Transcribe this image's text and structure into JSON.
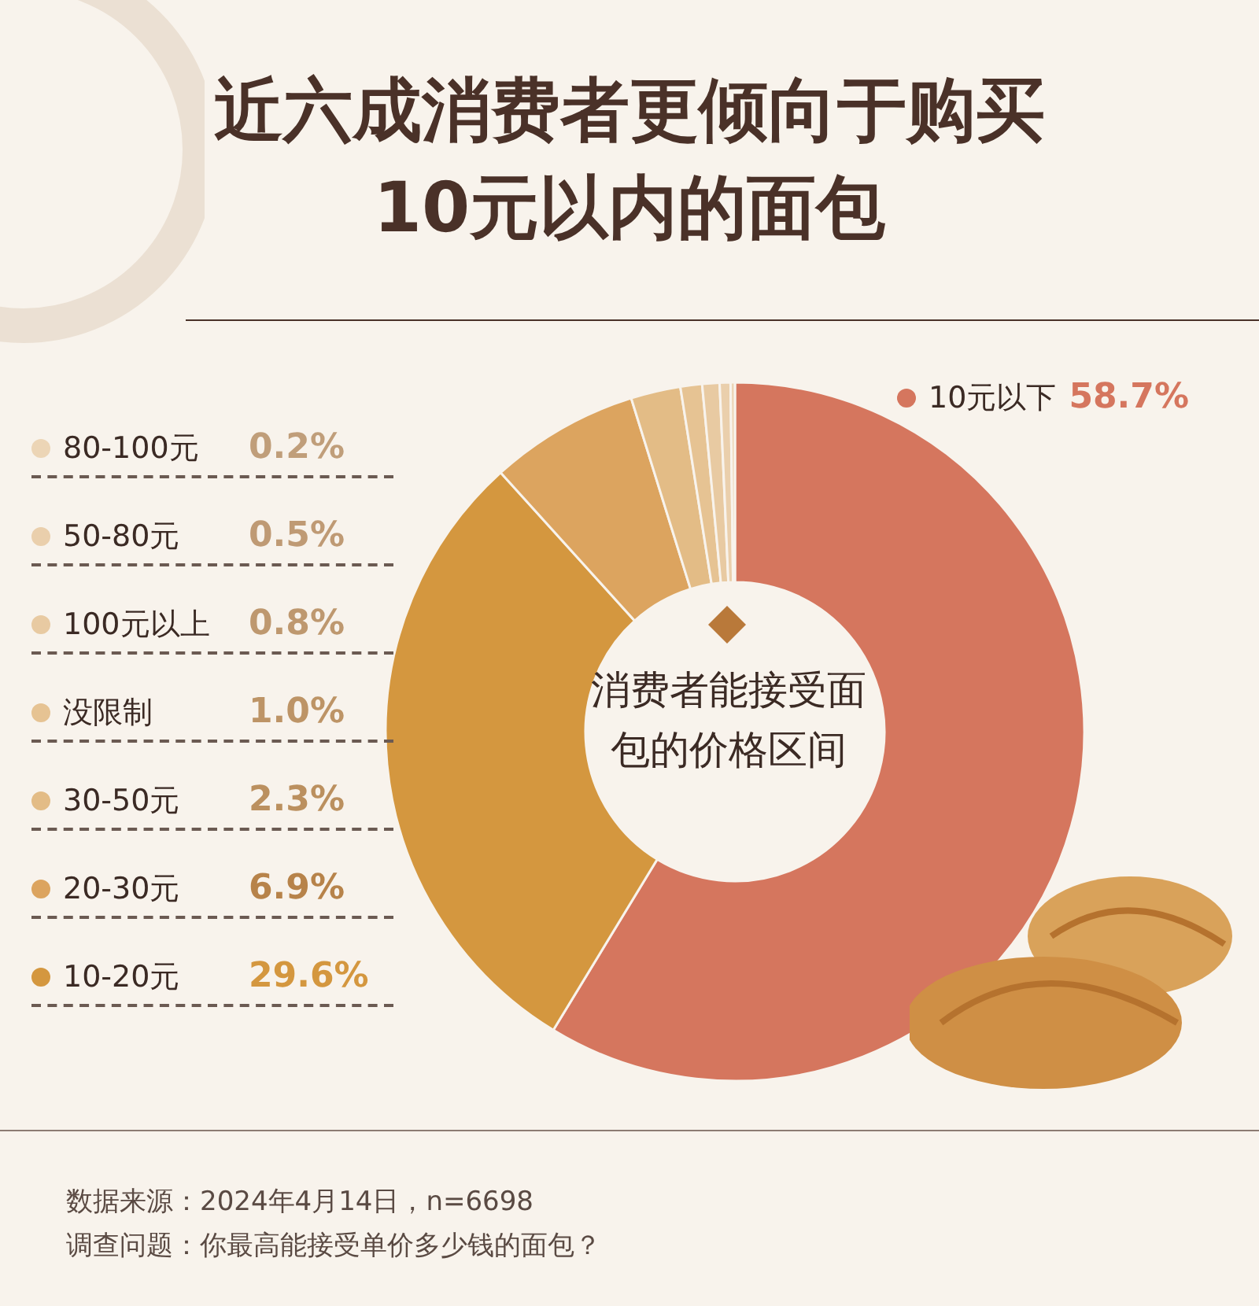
{
  "chart_data": {
    "type": "donut",
    "title": "近六成消费者更倾向于购买10元以内的面包",
    "subtitle": "消费者能接受面包的价格区间",
    "categories": [
      "10元以下",
      "10-20元",
      "20-30元",
      "30-50元",
      "没限制",
      "100元以上",
      "50-80元",
      "80-100元"
    ],
    "values": [
      58.7,
      29.6,
      6.9,
      2.3,
      1.0,
      0.8,
      0.5,
      0.2
    ],
    "value_labels": [
      "58.7%",
      "29.6%",
      "6.9%",
      "2.3%",
      "1.0%",
      "0.8%",
      "0.5%",
      "0.2%"
    ],
    "colors": [
      "#d5765e",
      "#d4973f",
      "#dca45f",
      "#e3bc86",
      "#e6c393",
      "#e8caa2",
      "#eacfac",
      "#ecd5b6"
    ],
    "legend": "left",
    "annotations": [
      "数据来源：2024年4月14日，n=6698",
      "调查问题：你最高能接受单价多少钱的面包？"
    ]
  }
}
